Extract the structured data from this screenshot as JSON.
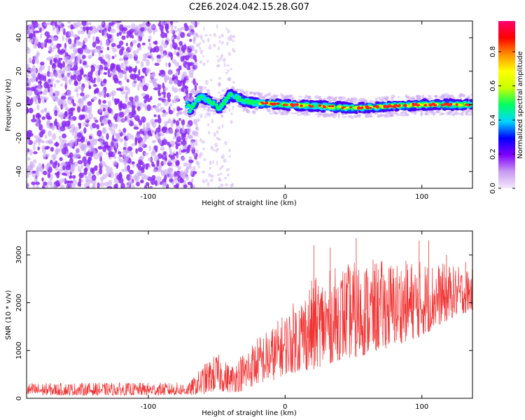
{
  "figure": {
    "title": "C2E6.2024.042.15.28.G07"
  },
  "chart_data": [
    {
      "type": "heatmap",
      "xlabel": "Height of straight line (km)",
      "ylabel": "Frequency (Hz)",
      "xlim": [
        -189,
        137
      ],
      "ylim": [
        -50,
        50
      ],
      "x_ticks": [
        -100,
        0,
        100
      ],
      "y_ticks": [
        -40,
        -20,
        0,
        20,
        40
      ],
      "grid": false,
      "description_points": [
        {
          "x": -70,
          "y": -4
        },
        {
          "x": -62,
          "y": 5
        },
        {
          "x": -55,
          "y": 2
        },
        {
          "x": -48,
          "y": -2
        },
        {
          "x": -40,
          "y": 6
        },
        {
          "x": -30,
          "y": 2
        },
        {
          "x": -20,
          "y": 1
        },
        {
          "x": 0,
          "y": 0
        },
        {
          "x": 50,
          "y": -2
        },
        {
          "x": 100,
          "y": 0
        },
        {
          "x": 135,
          "y": 0
        }
      ],
      "colorbar": {
        "label": "Normalized spectral amplitude",
        "range": [
          0,
          0.98
        ],
        "ticks": [
          "0.0",
          "0.2",
          "0.4",
          "0.6",
          "0.8"
        ],
        "stops": [
          "#f4eafc",
          "#c89af0",
          "#8000ff",
          "#0000ff",
          "#00d8ff",
          "#00ff60",
          "#c8ff00",
          "#ffff00",
          "#ff9000",
          "#ff0000",
          "#ff0070"
        ]
      },
      "colors": {
        "noise": "#8b2cf5",
        "noise_light": "#c9a6f5"
      }
    },
    {
      "type": "line",
      "xlabel": "Height of straight line (km)",
      "ylabel": "SNR (10 * v/v)",
      "xlim": [
        -189,
        137
      ],
      "ylim": [
        0,
        3500
      ],
      "x_ticks": [
        -100,
        0,
        100
      ],
      "y_ticks": [
        0,
        1000,
        2000,
        3000
      ],
      "grid": false,
      "line_color": "#f03434",
      "envelope": [
        {
          "x": -189,
          "lo": 60,
          "hi": 320
        },
        {
          "x": -70,
          "lo": 60,
          "hi": 330
        },
        {
          "x": -60,
          "lo": 80,
          "hi": 700
        },
        {
          "x": -50,
          "lo": 150,
          "hi": 950
        },
        {
          "x": -40,
          "lo": 120,
          "hi": 700
        },
        {
          "x": -30,
          "lo": 150,
          "hi": 1000
        },
        {
          "x": -20,
          "lo": 300,
          "hi": 1300
        },
        {
          "x": -10,
          "lo": 350,
          "hi": 1500
        },
        {
          "x": 0,
          "lo": 500,
          "hi": 1800
        },
        {
          "x": 20,
          "lo": 600,
          "hi": 2500
        },
        {
          "x": 40,
          "lo": 800,
          "hi": 2800
        },
        {
          "x": 60,
          "lo": 900,
          "hi": 2900
        },
        {
          "x": 80,
          "lo": 1100,
          "hi": 2900
        },
        {
          "x": 100,
          "lo": 1300,
          "hi": 2900
        },
        {
          "x": 120,
          "lo": 1650,
          "hi": 2800
        },
        {
          "x": 137,
          "lo": 1850,
          "hi": 2700
        }
      ],
      "spikes": [
        {
          "x": 21,
          "y": 3200
        },
        {
          "x": 33,
          "y": 3150
        },
        {
          "x": 52,
          "y": 3350
        },
        {
          "x": 98,
          "y": 3300
        },
        {
          "x": 105,
          "y": 3300
        },
        {
          "x": 118,
          "y": 3000
        },
        {
          "x": 132,
          "y": 2850
        }
      ]
    }
  ]
}
